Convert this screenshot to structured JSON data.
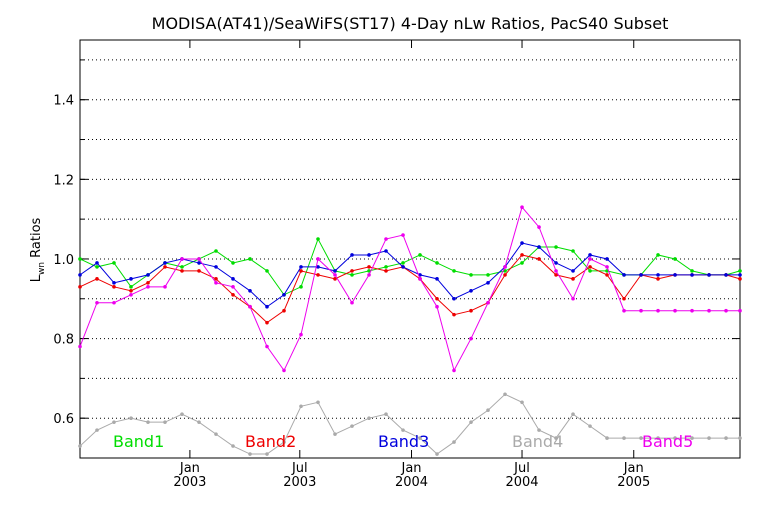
{
  "chart_data": {
    "type": "line",
    "title": "MODISA(AT41)/SeaWiFS(ST17) 4-Day nLw Ratios, PacS40 Subset",
    "ylabel_main": "L",
    "ylabel_sub": "wn",
    "ylabel_rest": " Ratios",
    "ylim": [
      0.5,
      1.55
    ],
    "yticks": [
      0.6,
      0.8,
      1.0,
      1.2,
      1.4
    ],
    "ytick_labels": [
      "0.6",
      "0.8",
      "1.0",
      "1.2",
      "1.4"
    ],
    "xlim": [
      "2002-07-04",
      "2005-06-25"
    ],
    "xticks": [
      {
        "date": "2003-01-01",
        "month": "Jan",
        "year": "2003"
      },
      {
        "date": "2003-07-01",
        "month": "Jul",
        "year": "2003"
      },
      {
        "date": "2004-01-01",
        "month": "Jan",
        "year": "2004"
      },
      {
        "date": "2004-07-01",
        "month": "Jul",
        "year": "2004"
      },
      {
        "date": "2005-01-01",
        "month": "Jan",
        "year": "2005"
      }
    ],
    "grid": true,
    "x": [
      "2002-07-04",
      "2002-08-01",
      "2002-08-29",
      "2002-09-26",
      "2002-10-24",
      "2002-11-21",
      "2002-12-19",
      "2003-01-16",
      "2003-02-13",
      "2003-03-13",
      "2003-04-10",
      "2003-05-08",
      "2003-06-05",
      "2003-07-03",
      "2003-07-31",
      "2003-08-28",
      "2003-09-25",
      "2003-10-23",
      "2003-11-20",
      "2003-12-18",
      "2004-01-15",
      "2004-02-12",
      "2004-03-11",
      "2004-04-08",
      "2004-05-06",
      "2004-06-03",
      "2004-07-01",
      "2004-07-29",
      "2004-08-26",
      "2004-09-23",
      "2004-10-21",
      "2004-11-18",
      "2004-12-16",
      "2005-01-13",
      "2005-02-10",
      "2005-03-10",
      "2005-04-07",
      "2005-05-05",
      "2005-06-02",
      "2005-06-25"
    ],
    "series": [
      {
        "name": "Band1",
        "color": "#00dd00",
        "values": [
          1.0,
          0.98,
          0.99,
          0.93,
          0.96,
          0.99,
          0.98,
          1.0,
          1.02,
          0.99,
          1.0,
          0.97,
          0.91,
          0.93,
          1.05,
          0.97,
          0.96,
          0.97,
          0.98,
          0.99,
          1.01,
          0.99,
          0.97,
          0.96,
          0.96,
          0.97,
          0.99,
          1.03,
          1.03,
          1.02,
          0.97,
          0.97,
          0.96,
          0.96,
          1.01,
          1.0,
          0.97,
          0.96,
          0.96,
          0.97
        ]
      },
      {
        "name": "Band2",
        "color": "#ee0000",
        "values": [
          0.93,
          0.95,
          0.93,
          0.92,
          0.94,
          0.98,
          0.97,
          0.97,
          0.95,
          0.91,
          0.88,
          0.84,
          0.87,
          0.97,
          0.96,
          0.95,
          0.97,
          0.98,
          0.97,
          0.98,
          0.95,
          0.9,
          0.86,
          0.87,
          0.89,
          0.96,
          1.01,
          1.0,
          0.96,
          0.95,
          0.98,
          0.96,
          0.9,
          0.96,
          0.95,
          0.96,
          0.96,
          0.96,
          0.96,
          0.95
        ]
      },
      {
        "name": "Band3",
        "color": "#0000dd",
        "values": [
          0.96,
          0.99,
          0.94,
          0.95,
          0.96,
          0.99,
          1.0,
          0.99,
          0.98,
          0.95,
          0.92,
          0.88,
          0.91,
          0.98,
          0.98,
          0.97,
          1.01,
          1.01,
          1.02,
          0.98,
          0.96,
          0.95,
          0.9,
          0.92,
          0.94,
          0.98,
          1.04,
          1.03,
          0.99,
          0.97,
          1.01,
          1.0,
          0.96,
          0.96,
          0.96,
          0.96,
          0.96,
          0.96,
          0.96,
          0.96
        ]
      },
      {
        "name": "Band4",
        "color": "#aaaaaa",
        "values": [
          0.53,
          0.57,
          0.59,
          0.6,
          0.59,
          0.59,
          0.61,
          0.59,
          0.56,
          0.53,
          0.51,
          0.51,
          0.54,
          0.63,
          0.64,
          0.56,
          0.58,
          0.6,
          0.61,
          0.57,
          0.55,
          0.51,
          0.54,
          0.59,
          0.62,
          0.66,
          0.64,
          0.57,
          0.55,
          0.61,
          0.58,
          0.55,
          0.55,
          0.55,
          0.55,
          0.55,
          0.55,
          0.55,
          0.55,
          0.55
        ]
      },
      {
        "name": "Band5",
        "color": "#ee00ee",
        "values": [
          0.78,
          0.89,
          0.89,
          0.91,
          0.93,
          0.93,
          1.0,
          1.0,
          0.94,
          0.93,
          0.88,
          0.78,
          0.72,
          0.81,
          1.0,
          0.96,
          0.89,
          0.96,
          1.05,
          1.06,
          0.95,
          0.88,
          0.72,
          0.8,
          0.89,
          0.98,
          1.13,
          1.08,
          0.97,
          0.9,
          1.0,
          0.98,
          0.87,
          0.87,
          0.87,
          0.87,
          0.87,
          0.87,
          0.87,
          0.87
        ]
      }
    ],
    "legend_placement": "bottom inside plot"
  }
}
